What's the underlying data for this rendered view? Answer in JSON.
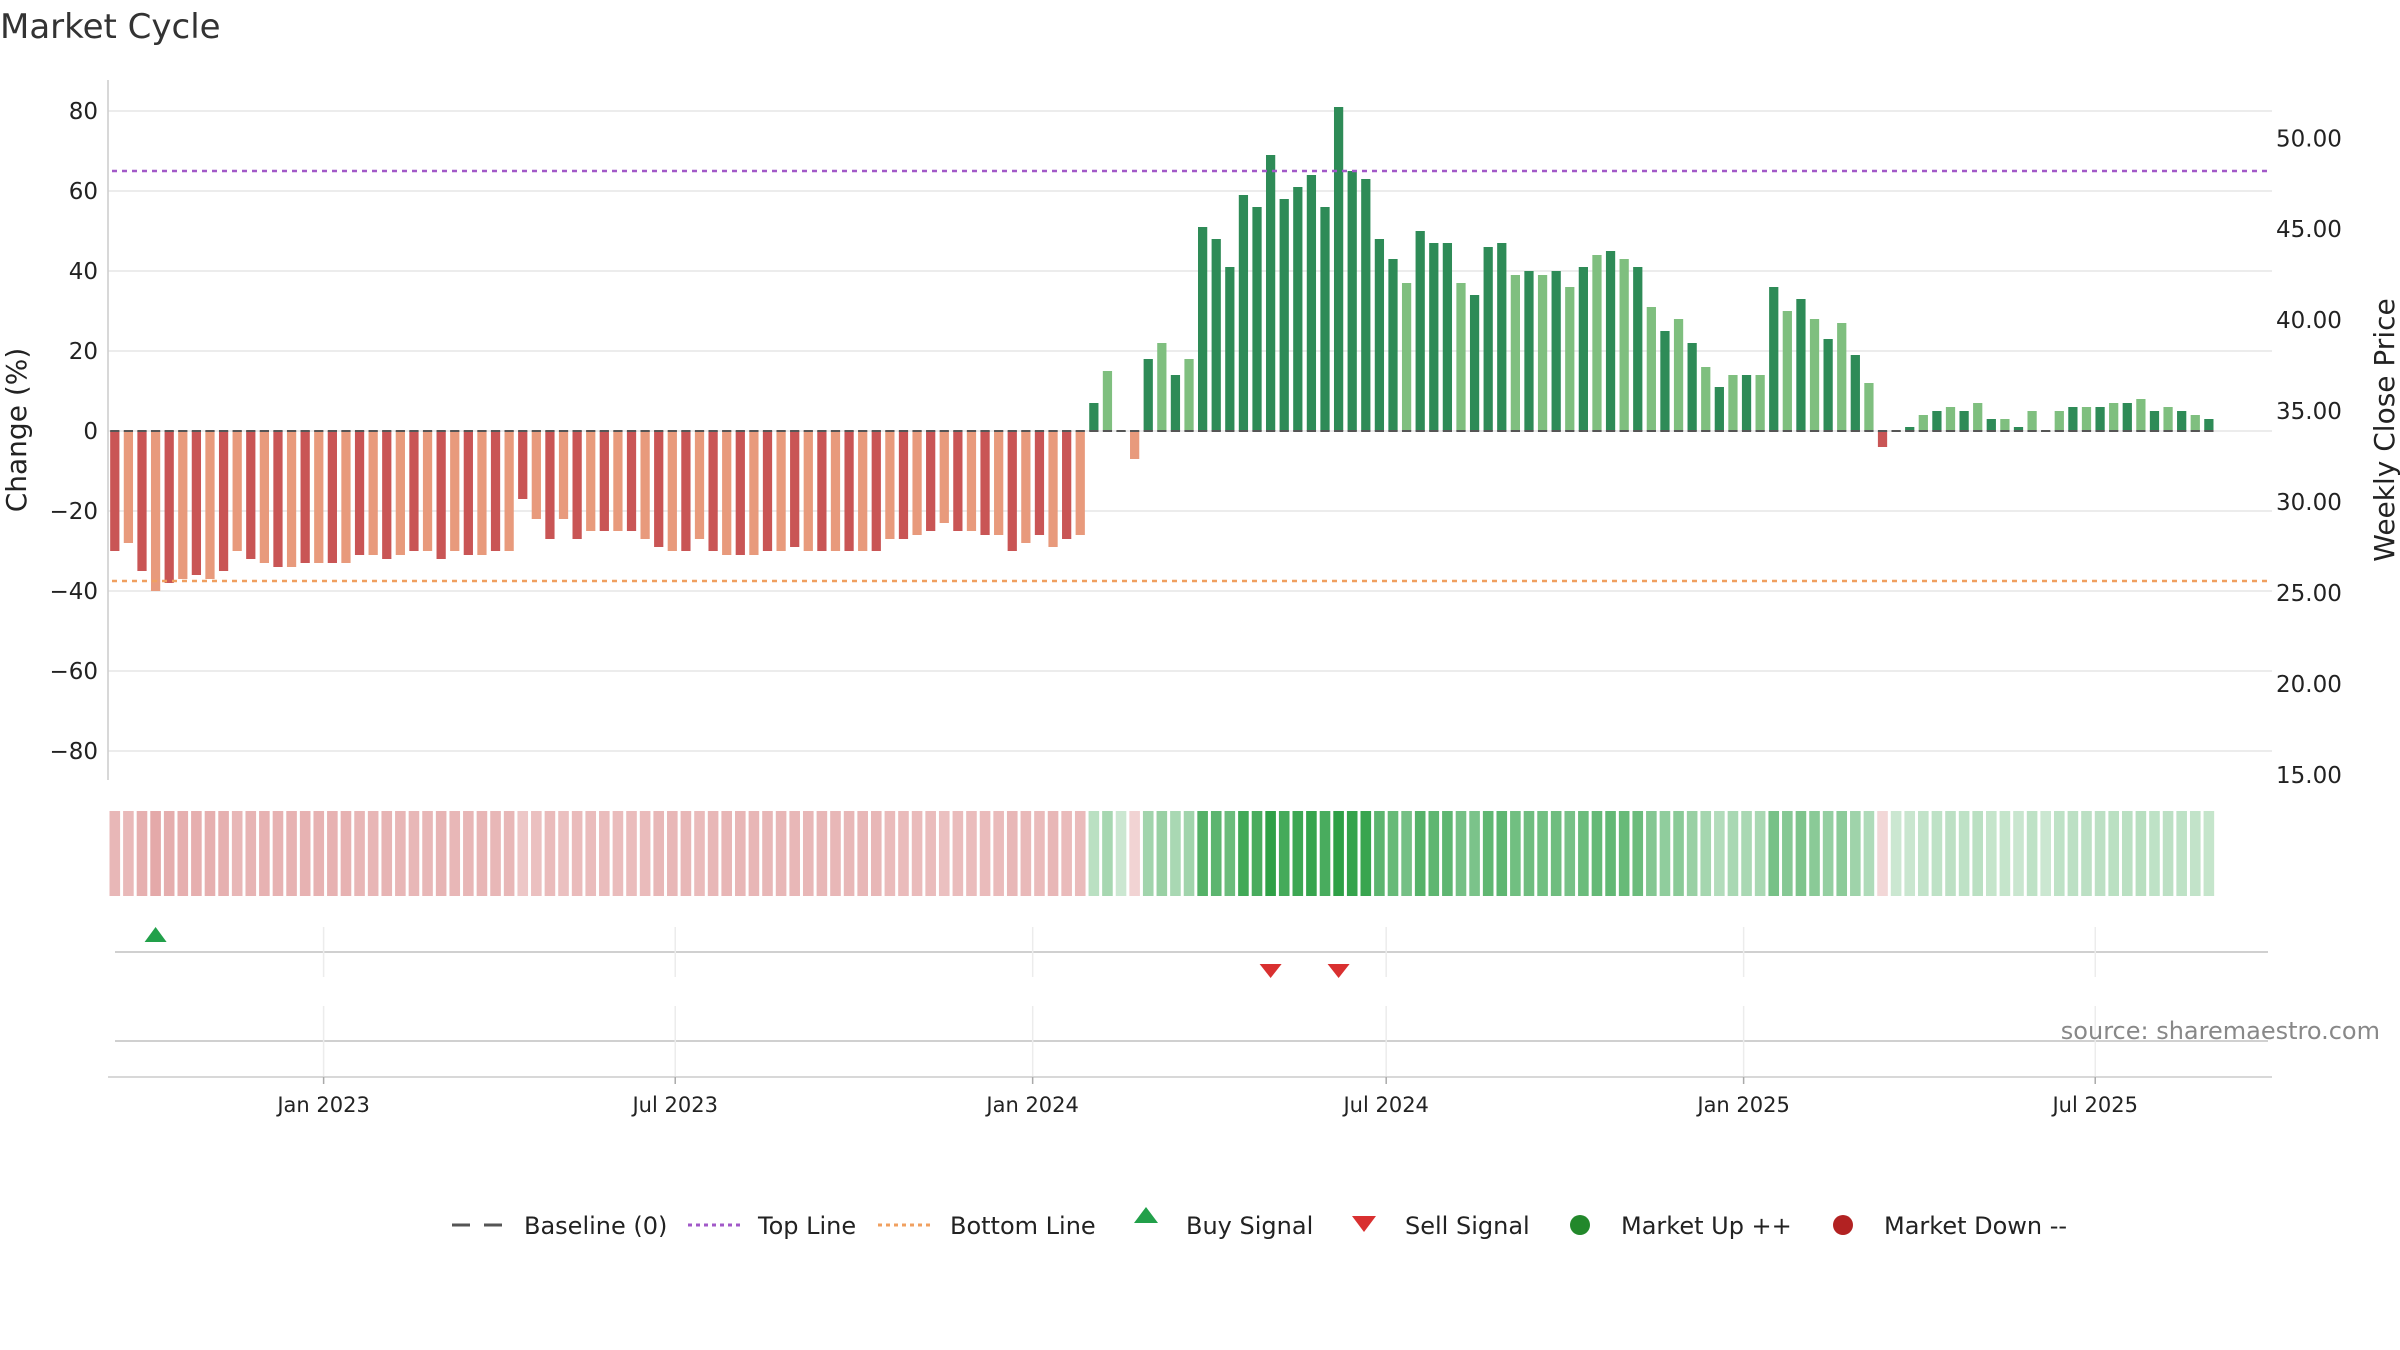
{
  "chart_data": {
    "type": "bar",
    "title": "Market Cycle",
    "y_left_label": "Change (%)",
    "y_right_label": "Weekly Close Price",
    "y_left_ticks": [
      "80",
      "60",
      "40",
      "20",
      "0",
      "−20",
      "−40",
      "−60",
      "−80"
    ],
    "y_right_ticks": [
      "50.00",
      "45.00",
      "40.00",
      "35.00",
      "30.00",
      "25.00",
      "20.00",
      "15.00"
    ],
    "ylim_left": [
      -88,
      88
    ],
    "ylim_right": [
      15,
      51.5
    ],
    "x_start": "2022-09-12",
    "x_step_days": 7,
    "x_end": "2025-09-30",
    "top_line": 65,
    "bottom_line": -37.5,
    "date_ticks": [
      {
        "date": "2023-01-01",
        "label": "Jan 2023"
      },
      {
        "date": "2023-07-01",
        "label": "Jul 2023"
      },
      {
        "date": "2024-01-01",
        "label": "Jan 2024"
      },
      {
        "date": "2024-07-01",
        "label": "Jul 2024"
      },
      {
        "date": "2025-01-01",
        "label": "Jan 2025"
      },
      {
        "date": "2025-07-01",
        "label": "Jul 2025"
      }
    ],
    "values": [
      -30,
      -28,
      -35,
      -40,
      -38,
      -37,
      -36,
      -37,
      -35,
      -30,
      -32,
      -33,
      -34,
      -34,
      -33,
      -33,
      -33,
      -33,
      -31,
      -31,
      -32,
      -31,
      -30,
      -30,
      -32,
      -30,
      -31,
      -31,
      -30,
      -30,
      -17,
      -22,
      -27,
      -22,
      -27,
      -25,
      -25,
      -25,
      -25,
      -27,
      -29,
      -30,
      -30,
      -27,
      -30,
      -31,
      -31,
      -31,
      -30,
      -30,
      -29,
      -30,
      -30,
      -30,
      -30,
      -30,
      -30,
      -27,
      -27,
      -26,
      -25,
      -23,
      -25,
      -25,
      -26,
      -26,
      -30,
      -28,
      -26,
      -29,
      -27,
      -26,
      7,
      15,
      0,
      -7,
      18,
      22,
      14,
      18,
      51,
      48,
      41,
      59,
      56,
      69,
      58,
      61,
      64,
      56,
      81,
      65,
      63,
      48,
      43,
      37,
      50,
      47,
      47,
      37,
      34,
      46,
      47,
      39,
      40,
      39,
      40,
      36,
      41,
      44,
      45,
      43,
      41,
      31,
      25,
      28,
      22,
      16,
      11,
      14,
      14,
      14,
      36,
      30,
      33,
      28,
      23,
      27,
      19,
      12,
      -4,
      0,
      1,
      4,
      5,
      6,
      5,
      7,
      3,
      3,
      1,
      5,
      0,
      5,
      6,
      6,
      6,
      7,
      7,
      8,
      5,
      6,
      5,
      4,
      3
    ],
    "colors": {
      "down_strong": "#c95555",
      "down_weak": "#e89a7c",
      "up_strong": "#2e8b57",
      "up_weak": "#7fbf7f",
      "top_line": "#a259c8",
      "bottom_line": "#f0a060",
      "baseline": "#555555",
      "buy": "#22a04a",
      "sell": "#d93030",
      "market_up": "#22882b",
      "market_down": "#b22222"
    },
    "buy_signals": [
      {
        "index": 3
      }
    ],
    "sell_signals": [
      {
        "index": 85
      },
      {
        "index": 90
      }
    ],
    "legend": [
      {
        "label": "Baseline (0)",
        "symbol": "dash"
      },
      {
        "label": "Top Line",
        "symbol": "dot-purple"
      },
      {
        "label": "Bottom Line",
        "symbol": "dot-orange"
      },
      {
        "label": "Buy Signal",
        "symbol": "triangle-up"
      },
      {
        "label": "Sell Signal",
        "symbol": "triangle-down"
      },
      {
        "label": "Market Up ++",
        "symbol": "circle-green"
      },
      {
        "label": "Market Down --",
        "symbol": "circle-red"
      }
    ],
    "source": "source: sharemaestro.com"
  }
}
